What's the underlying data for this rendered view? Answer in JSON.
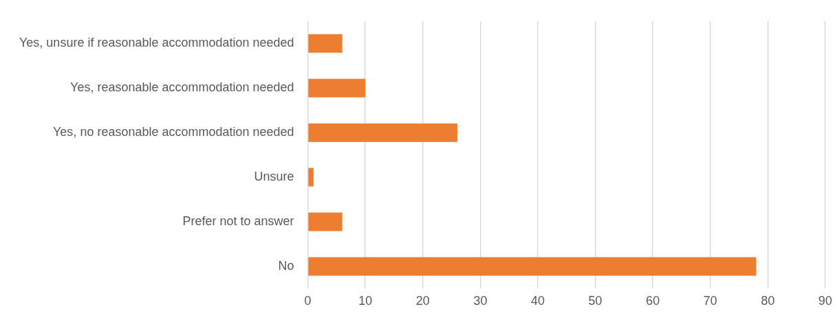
{
  "chart_data": {
    "type": "bar",
    "orientation": "horizontal",
    "categories": [
      "Yes, unsure if reasonable accommodation needed",
      "Yes, reasonable accommodation needed",
      "Yes, no reasonable accommodation needed",
      "Unsure",
      "Prefer not to answer",
      "No"
    ],
    "values": [
      6,
      10,
      26,
      1,
      6,
      78
    ],
    "color": "#ed7d31",
    "xlim": [
      0,
      90
    ],
    "xticks": [
      0,
      10,
      20,
      30,
      40,
      50,
      60,
      70,
      80,
      90
    ],
    "grid": "x",
    "legend": false
  }
}
